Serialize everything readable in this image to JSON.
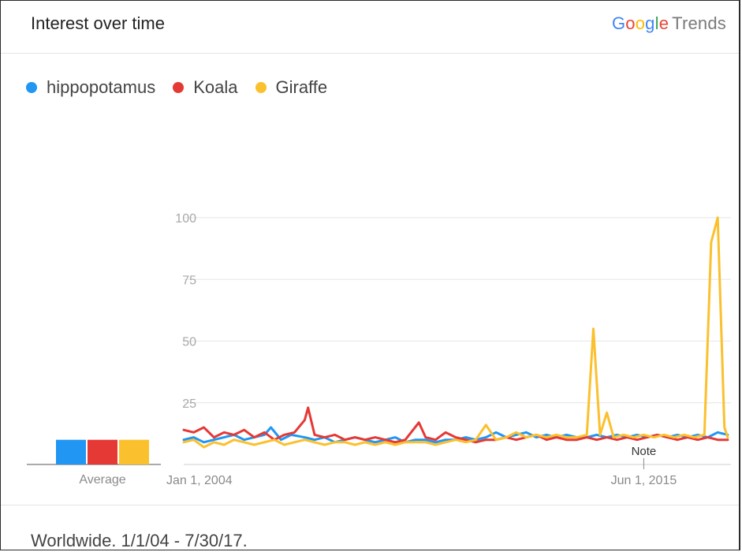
{
  "header": {
    "title": "Interest over time",
    "brand": {
      "letters": [
        {
          "ch": "G",
          "color": "#4285F4"
        },
        {
          "ch": "o",
          "color": "#EA4335"
        },
        {
          "ch": "o",
          "color": "#FBBC05"
        },
        {
          "ch": "g",
          "color": "#4285F4"
        },
        {
          "ch": "l",
          "color": "#34A853"
        },
        {
          "ch": "e",
          "color": "#EA4335"
        }
      ],
      "suffix": "Trends"
    }
  },
  "legend": [
    {
      "label": "hippopotamus",
      "color": "#2196F3"
    },
    {
      "label": "Koala",
      "color": "#E53935"
    },
    {
      "label": "Giraffe",
      "color": "#FBC02D"
    }
  ],
  "footer": {
    "text": "Worldwide. 1/1/04 - 7/30/17."
  },
  "chart_data": {
    "type": "line",
    "title": "Interest over time",
    "xlabel": "",
    "ylabel": "",
    "ylim": [
      0,
      100
    ],
    "yticks": [
      25,
      50,
      75,
      100
    ],
    "xlim": [
      "2004-01-01",
      "2017-07-30"
    ],
    "xtick_labels": [
      {
        "label": "Jan 1, 2004",
        "date": "2004-01-01"
      },
      {
        "label": "Jun 1, 2015",
        "date": "2015-06-01"
      }
    ],
    "grid": true,
    "legend_position": "top-left",
    "annotation": {
      "label": "Note",
      "date": "2015-06-01"
    },
    "average": {
      "label": "Average",
      "values": [
        10,
        10,
        10
      ]
    },
    "series": [
      {
        "name": "hippopotamus",
        "color": "#2196F3",
        "points": [
          [
            "2004-01-01",
            10
          ],
          [
            "2004-04-01",
            11
          ],
          [
            "2004-07-01",
            9
          ],
          [
            "2004-10-01",
            10
          ],
          [
            "2005-01-01",
            11
          ],
          [
            "2005-04-01",
            12
          ],
          [
            "2005-07-01",
            10
          ],
          [
            "2005-10-01",
            11
          ],
          [
            "2006-01-01",
            12
          ],
          [
            "2006-03-01",
            15
          ],
          [
            "2006-06-01",
            10
          ],
          [
            "2006-09-01",
            12
          ],
          [
            "2007-01-01",
            11
          ],
          [
            "2007-04-01",
            10
          ],
          [
            "2007-07-01",
            11
          ],
          [
            "2007-10-01",
            9
          ],
          [
            "2008-01-01",
            10
          ],
          [
            "2008-04-01",
            11
          ],
          [
            "2008-07-01",
            10
          ],
          [
            "2008-10-01",
            9
          ],
          [
            "2009-01-01",
            10
          ],
          [
            "2009-04-01",
            11
          ],
          [
            "2009-07-01",
            9
          ],
          [
            "2009-10-01",
            10
          ],
          [
            "2010-01-01",
            10
          ],
          [
            "2010-04-01",
            9
          ],
          [
            "2010-07-01",
            10
          ],
          [
            "2010-10-01",
            10
          ],
          [
            "2011-01-01",
            11
          ],
          [
            "2011-04-01",
            10
          ],
          [
            "2011-07-01",
            11
          ],
          [
            "2011-10-01",
            13
          ],
          [
            "2012-01-01",
            11
          ],
          [
            "2012-04-01",
            12
          ],
          [
            "2012-07-01",
            13
          ],
          [
            "2012-10-01",
            11
          ],
          [
            "2013-01-01",
            12
          ],
          [
            "2013-04-01",
            11
          ],
          [
            "2013-07-01",
            12
          ],
          [
            "2013-10-01",
            11
          ],
          [
            "2014-01-01",
            11
          ],
          [
            "2014-04-01",
            12
          ],
          [
            "2014-07-01",
            11
          ],
          [
            "2014-10-01",
            12
          ],
          [
            "2015-01-01",
            11
          ],
          [
            "2015-04-01",
            12
          ],
          [
            "2015-07-01",
            11
          ],
          [
            "2015-10-01",
            12
          ],
          [
            "2016-01-01",
            11
          ],
          [
            "2016-04-01",
            12
          ],
          [
            "2016-07-01",
            11
          ],
          [
            "2016-10-01",
            12
          ],
          [
            "2017-01-01",
            11
          ],
          [
            "2017-04-01",
            13
          ],
          [
            "2017-07-01",
            12
          ]
        ]
      },
      {
        "name": "Koala",
        "color": "#E53935",
        "points": [
          [
            "2004-01-01",
            14
          ],
          [
            "2004-04-01",
            13
          ],
          [
            "2004-07-01",
            15
          ],
          [
            "2004-10-01",
            11
          ],
          [
            "2005-01-01",
            13
          ],
          [
            "2005-04-01",
            12
          ],
          [
            "2005-07-01",
            14
          ],
          [
            "2005-10-01",
            11
          ],
          [
            "2006-01-01",
            13
          ],
          [
            "2006-04-01",
            10
          ],
          [
            "2006-07-01",
            12
          ],
          [
            "2006-10-01",
            13
          ],
          [
            "2007-01-01",
            18
          ],
          [
            "2007-02-01",
            23
          ],
          [
            "2007-04-01",
            12
          ],
          [
            "2007-07-01",
            11
          ],
          [
            "2007-10-01",
            12
          ],
          [
            "2008-01-01",
            10
          ],
          [
            "2008-04-01",
            11
          ],
          [
            "2008-07-01",
            10
          ],
          [
            "2008-10-01",
            11
          ],
          [
            "2009-01-01",
            10
          ],
          [
            "2009-04-01",
            9
          ],
          [
            "2009-07-01",
            10
          ],
          [
            "2009-11-01",
            17
          ],
          [
            "2010-01-01",
            11
          ],
          [
            "2010-04-01",
            10
          ],
          [
            "2010-07-01",
            13
          ],
          [
            "2010-10-01",
            11
          ],
          [
            "2011-01-01",
            10
          ],
          [
            "2011-04-01",
            9
          ],
          [
            "2011-07-01",
            10
          ],
          [
            "2011-10-01",
            10
          ],
          [
            "2012-01-01",
            11
          ],
          [
            "2012-04-01",
            10
          ],
          [
            "2012-07-01",
            11
          ],
          [
            "2012-10-01",
            12
          ],
          [
            "2013-01-01",
            10
          ],
          [
            "2013-04-01",
            11
          ],
          [
            "2013-07-01",
            10
          ],
          [
            "2013-10-01",
            10
          ],
          [
            "2014-01-01",
            11
          ],
          [
            "2014-04-01",
            10
          ],
          [
            "2014-07-01",
            11
          ],
          [
            "2014-10-01",
            10
          ],
          [
            "2015-01-01",
            11
          ],
          [
            "2015-04-01",
            10
          ],
          [
            "2015-07-01",
            11
          ],
          [
            "2015-10-01",
            12
          ],
          [
            "2016-01-01",
            11
          ],
          [
            "2016-04-01",
            10
          ],
          [
            "2016-07-01",
            11
          ],
          [
            "2016-10-01",
            10
          ],
          [
            "2017-01-01",
            11
          ],
          [
            "2017-04-01",
            10
          ],
          [
            "2017-07-01",
            10
          ]
        ]
      },
      {
        "name": "Giraffe",
        "color": "#FBC02D",
        "points": [
          [
            "2004-01-01",
            9
          ],
          [
            "2004-04-01",
            10
          ],
          [
            "2004-07-01",
            7
          ],
          [
            "2004-10-01",
            9
          ],
          [
            "2005-01-01",
            8
          ],
          [
            "2005-04-01",
            10
          ],
          [
            "2005-07-01",
            9
          ],
          [
            "2005-10-01",
            8
          ],
          [
            "2006-01-01",
            9
          ],
          [
            "2006-04-01",
            10
          ],
          [
            "2006-07-01",
            8
          ],
          [
            "2006-10-01",
            9
          ],
          [
            "2007-01-01",
            10
          ],
          [
            "2007-04-01",
            9
          ],
          [
            "2007-07-01",
            8
          ],
          [
            "2007-10-01",
            9
          ],
          [
            "2008-01-01",
            9
          ],
          [
            "2008-04-01",
            8
          ],
          [
            "2008-07-01",
            9
          ],
          [
            "2008-10-01",
            8
          ],
          [
            "2009-01-01",
            9
          ],
          [
            "2009-04-01",
            8
          ],
          [
            "2009-07-01",
            9
          ],
          [
            "2009-10-01",
            9
          ],
          [
            "2010-01-01",
            9
          ],
          [
            "2010-04-01",
            8
          ],
          [
            "2010-07-01",
            9
          ],
          [
            "2010-10-01",
            10
          ],
          [
            "2011-01-01",
            9
          ],
          [
            "2011-04-01",
            10
          ],
          [
            "2011-07-01",
            16
          ],
          [
            "2011-10-01",
            10
          ],
          [
            "2012-01-01",
            11
          ],
          [
            "2012-04-01",
            13
          ],
          [
            "2012-07-01",
            11
          ],
          [
            "2012-10-01",
            12
          ],
          [
            "2013-01-01",
            11
          ],
          [
            "2013-04-01",
            12
          ],
          [
            "2013-07-01",
            11
          ],
          [
            "2013-10-01",
            11
          ],
          [
            "2014-01-01",
            12
          ],
          [
            "2014-03-01",
            55
          ],
          [
            "2014-05-01",
            12
          ],
          [
            "2014-07-01",
            21
          ],
          [
            "2014-09-01",
            11
          ],
          [
            "2014-12-01",
            12
          ],
          [
            "2015-03-01",
            11
          ],
          [
            "2015-06-01",
            12
          ],
          [
            "2015-09-01",
            11
          ],
          [
            "2015-12-01",
            12
          ],
          [
            "2016-03-01",
            11
          ],
          [
            "2016-06-01",
            12
          ],
          [
            "2016-09-01",
            11
          ],
          [
            "2016-12-01",
            12
          ],
          [
            "2017-02-01",
            90
          ],
          [
            "2017-04-01",
            100
          ],
          [
            "2017-06-01",
            15
          ],
          [
            "2017-07-01",
            11
          ]
        ]
      }
    ]
  }
}
